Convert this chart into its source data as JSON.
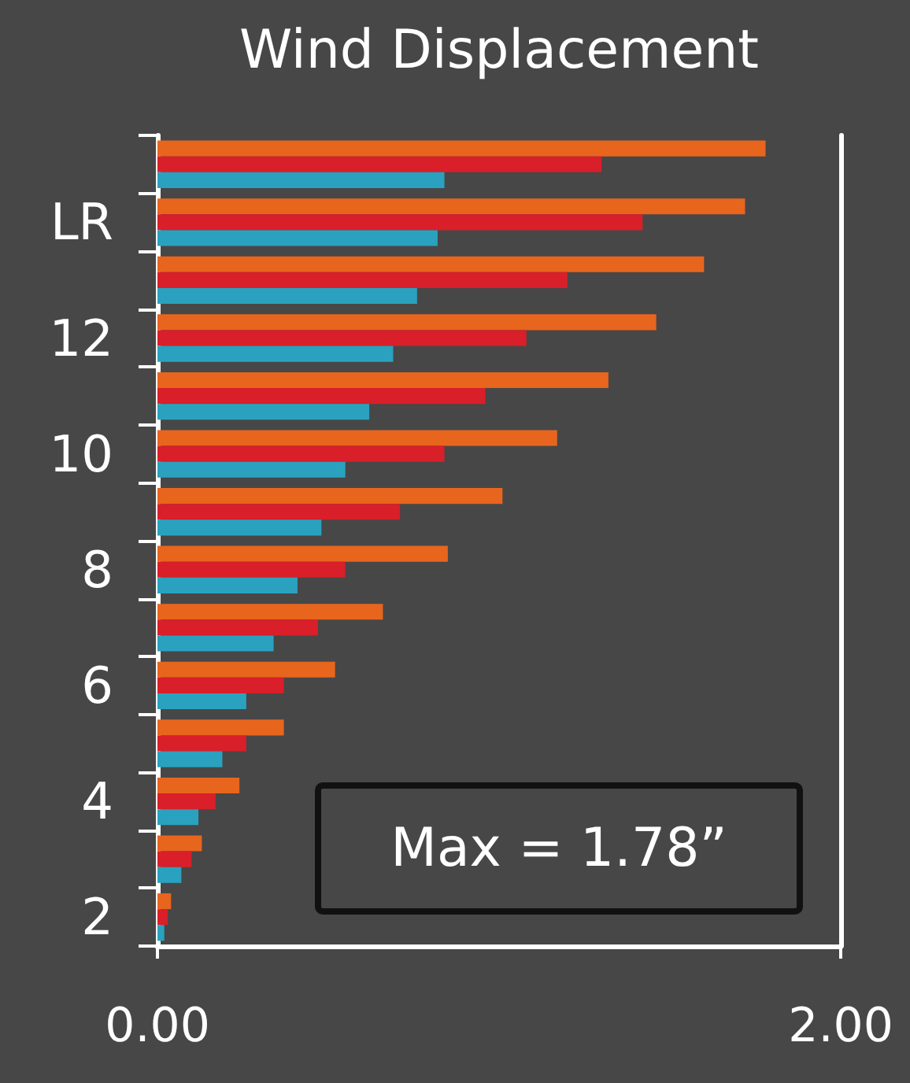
{
  "chart_data": {
    "type": "bar",
    "orientation": "horizontal",
    "title": "Wind Displacement",
    "categories": [
      null,
      "LR",
      null,
      "12",
      null,
      "10",
      null,
      "8",
      null,
      "6",
      null,
      "4",
      null,
      "2"
    ],
    "series": [
      {
        "color": "#e8651e",
        "values": [
          1.78,
          1.72,
          1.6,
          1.46,
          1.32,
          1.17,
          1.01,
          0.85,
          0.66,
          0.52,
          0.37,
          0.24,
          0.13,
          0.04
        ]
      },
      {
        "color": "#d91f29",
        "values": [
          1.3,
          1.42,
          1.2,
          1.08,
          0.96,
          0.84,
          0.71,
          0.55,
          0.47,
          0.37,
          0.26,
          0.17,
          0.1,
          0.03
        ]
      },
      {
        "color": "#2aa2bf",
        "values": [
          0.84,
          0.82,
          0.76,
          0.69,
          0.62,
          0.55,
          0.48,
          0.41,
          0.34,
          0.26,
          0.19,
          0.12,
          0.07,
          0.02
        ]
      }
    ],
    "xlim": [
      0,
      2
    ],
    "xticks": [
      {
        "value": 0,
        "label": "0.00"
      },
      {
        "value": 2,
        "label": "2.00"
      }
    ],
    "annotations": [
      "Max = 1.78”"
    ]
  }
}
